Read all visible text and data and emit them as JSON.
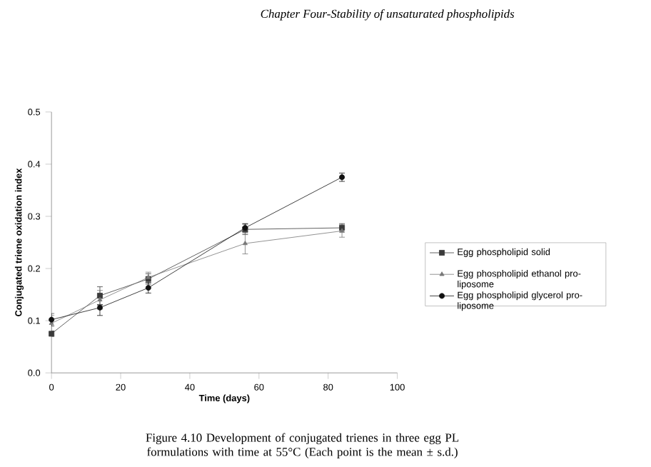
{
  "chart_data": {
    "type": "line",
    "xlabel": "Time (days)",
    "ylabel": "Conjugated triene oxidation index",
    "annotations": [
      "Chapter Four-Stability of unsaturated phospholipids",
      "Figure 4.10 Development of conjugated trienes in three egg PL formulations with time at 55°C (Each point is the mean ± s.d.)"
    ],
    "x": [
      0,
      14,
      28,
      56,
      84
    ],
    "series": [
      {
        "name": "Egg phospholipid solid",
        "color": "#3a3a3a",
        "marker": "square",
        "values": [
          0.075,
          0.148,
          0.18,
          0.275,
          0.278
        ],
        "errors": [
          0.005,
          0.017,
          0.01,
          0.01,
          0.008
        ]
      },
      {
        "name": "Egg phospholipid ethanol pro-liposome",
        "color": "#777777",
        "marker": "triangle",
        "values": [
          0.095,
          0.14,
          0.183,
          0.248,
          0.272
        ],
        "errors": [
          0.015,
          0.018,
          0.01,
          0.02,
          0.012
        ]
      },
      {
        "name": "Egg phospholipid glycerol pro-liposome",
        "color": "#111111",
        "marker": "circle",
        "values": [
          0.102,
          0.125,
          0.163,
          0.278,
          0.375
        ],
        "errors": [
          0.012,
          [
            0.11,
            0.13
          ],
          0.01,
          0.008,
          0.008
        ]
      }
    ],
    "xlim": [
      0,
      100
    ],
    "xticks": [
      0,
      20,
      40,
      60,
      80,
      100
    ],
    "ylim": [
      0,
      0.5
    ],
    "yticks": [
      {
        "value": 0,
        "label": "0.0"
      },
      0.1,
      0.2,
      0.3,
      0.4,
      0.5
    ],
    "grid": false,
    "legend": "right",
    "line_style": "solid"
  }
}
